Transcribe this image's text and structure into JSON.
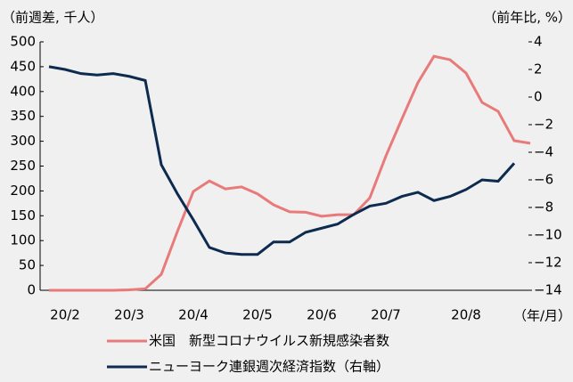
{
  "chart_data": {
    "type": "line",
    "y_label": "（前週差, 千人）",
    "y2_label": "（前年比, %）",
    "x_label": "（年/月）",
    "categories": [
      null,
      "20/2",
      null,
      null,
      null,
      "20/3",
      null,
      null,
      null,
      "20/4",
      null,
      null,
      null,
      "20/5",
      null,
      null,
      null,
      "20/6",
      null,
      null,
      null,
      "20/7",
      null,
      null,
      null,
      null,
      "20/8",
      null,
      null,
      null,
      null
    ],
    "series": [
      {
        "name": "米国　新型コロナウイルス新規感染者数",
        "color": "#e87a7a",
        "axis": "y",
        "values": [
          0,
          0,
          0,
          0,
          0,
          1,
          3,
          32,
          118,
          199,
          220,
          204,
          208,
          194,
          172,
          158,
          157,
          149,
          152,
          152,
          186,
          270,
          345,
          418,
          471,
          464,
          437,
          378,
          360,
          301,
          296
        ]
      },
      {
        "name": "ニューヨーク連銀週次経済指数（右軸）",
        "color": "#0d2a4f",
        "axis": "y2",
        "values": [
          2.2,
          2.0,
          1.7,
          1.6,
          1.7,
          1.5,
          1.2,
          -4.9,
          -7.0,
          -8.9,
          -10.9,
          -11.3,
          -11.4,
          -11.4,
          -10.5,
          -10.5,
          -9.8,
          -9.5,
          -9.2,
          -8.5,
          -7.9,
          -7.7,
          -7.2,
          -6.9,
          -7.5,
          -7.2,
          -6.7,
          -6.0,
          -6.1,
          -4.8,
          null
        ]
      }
    ],
    "ylim": [
      0,
      500
    ],
    "yticks": [
      0,
      50,
      100,
      150,
      200,
      250,
      300,
      350,
      400,
      450,
      500
    ],
    "y2lim": [
      -14,
      4
    ],
    "y2ticks": [
      {
        "value": -14,
        "label": "−14"
      },
      {
        "value": -12,
        "label": "−12"
      },
      {
        "value": -10,
        "label": "−10"
      },
      {
        "value": -8,
        "label": "−8"
      },
      {
        "value": -6,
        "label": "−6"
      },
      {
        "value": -4,
        "label": "−4"
      },
      {
        "value": -2,
        "label": "−2"
      },
      0,
      2,
      4
    ],
    "grid": false
  }
}
